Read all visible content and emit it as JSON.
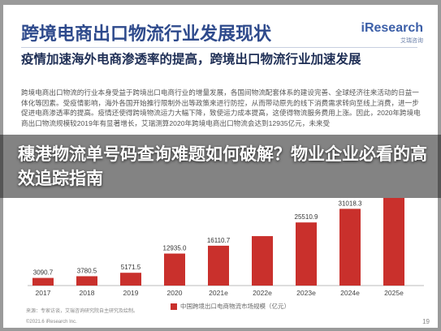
{
  "slide": {
    "title": "跨境电商出口物流行业发展现状",
    "brand_name": "iResearch",
    "brand_sub": "艾瑞咨询",
    "subtitle": "疫情加速海外电商渗透率的提高，跨境出口物流行业加速发展",
    "body": "跨境电商出口物流的行业本身受益于跨境出口电商行业的增量发展，各国间物流配套体系的建设完善、全球经济往来活动的日益一体化等因素。受疫情影响，海外各国开始推行限制外出等政策来进行防控，从而带动原先的线下消费需求转向至线上消费，进一步促进电商渗透率的提高。疫情还使得跨境物流运力大幅下降，致使运力成本提高，这使得物流服务费用上涨。因此，2020年跨境电商出口物流规模较2019年有显著增长，艾瑞测算2020年跨境电商出口物流会达到12935亿元，未来受"
  },
  "banner": {
    "text": "穗港物流单号码查询难题如何破解？物业企业必看的高效追踪指南"
  },
  "chart_data": {
    "type": "bar",
    "categories": [
      "2017",
      "2018",
      "2019",
      "2020",
      "2021e",
      "2022e",
      "2023e",
      "2024e",
      "2025e"
    ],
    "values": [
      3090.7,
      3780.5,
      5171.5,
      12935.0,
      16110.7,
      19981.0,
      25510.9,
      31018.3,
      37260.0
    ],
    "value_labels": [
      "3090.7",
      "3780.5",
      "5171.5",
      "12935.0",
      "16110.7",
      "",
      "25510.9",
      "31018.3",
      ""
    ],
    "series_name": "中国跨境出口电商物流市场规模（亿元）",
    "ylim": [
      0,
      40000
    ],
    "color": "#c9302c",
    "legend_position": "bottom"
  },
  "footer": {
    "source": "来源：专家访谈，艾瑞咨询研究院自主研究及绘制。",
    "copyright": "©2021.6 iResearch Inc.",
    "page": "19"
  }
}
